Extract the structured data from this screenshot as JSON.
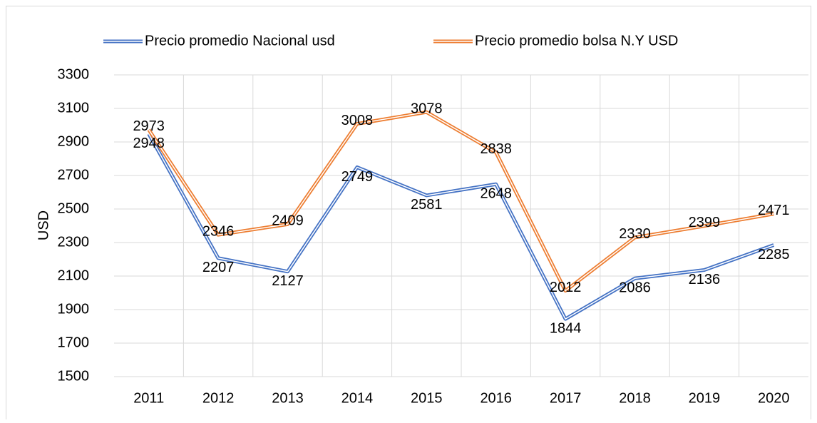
{
  "chart_data": {
    "type": "line",
    "y_label": "USD",
    "categories": [
      "2011",
      "2012",
      "2013",
      "2014",
      "2015",
      "2016",
      "2017",
      "2018",
      "2019",
      "2020"
    ],
    "series": [
      {
        "name": "Precio promedio Nacional usd",
        "color": "#4472c4",
        "values": [
          2948,
          2207,
          2127,
          2749,
          2581,
          2648,
          1844,
          2086,
          2136,
          2285
        ]
      },
      {
        "name": "Precio promedio bolsa N.Y USD",
        "color": "#ed7d31",
        "values": [
          2973,
          2346,
          2409,
          3008,
          3078,
          2838,
          2012,
          2330,
          2399,
          2471
        ]
      }
    ],
    "ylim": [
      1500,
      3300
    ],
    "yticks": [
      1500,
      1700,
      1900,
      2100,
      2300,
      2500,
      2700,
      2900,
      3100,
      3300
    ],
    "grid": true,
    "legend": "top"
  }
}
